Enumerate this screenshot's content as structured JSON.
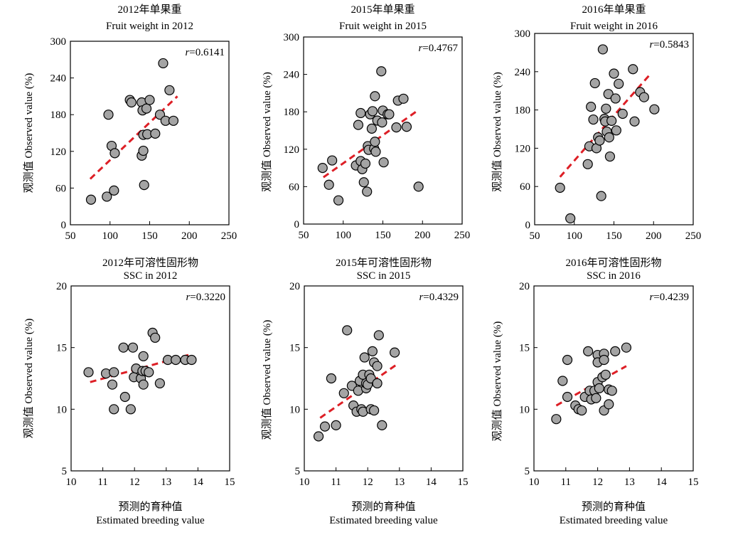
{
  "figure": {
    "ylabel": "观测值 Observed value (%)",
    "xlabel_cn": "预测的育种值",
    "xlabel_en": "Estimated breeding value"
  },
  "chart_data": [
    {
      "type": "scatter",
      "title_cn": "2012年单果重",
      "title_en": "Fruit weight in 2012",
      "r_prefix": "r",
      "r_value": "=0.6141",
      "xlim": [
        50,
        250
      ],
      "xticks": [
        50,
        100,
        150,
        200,
        250
      ],
      "ylim": [
        0,
        300
      ],
      "yticks": [
        0,
        60,
        120,
        180,
        240,
        300
      ],
      "trend": [
        [
          75,
          75
        ],
        [
          185,
          210
        ]
      ],
      "points": [
        [
          76,
          41
        ],
        [
          96,
          46
        ],
        [
          98,
          180
        ],
        [
          102,
          129
        ],
        [
          106,
          117
        ],
        [
          105,
          56
        ],
        [
          125,
          204
        ],
        [
          127,
          200
        ],
        [
          140,
          200
        ],
        [
          141,
          187
        ],
        [
          140,
          113
        ],
        [
          142,
          121
        ],
        [
          142,
          147
        ],
        [
          143,
          65
        ],
        [
          146,
          190
        ],
        [
          147,
          148
        ],
        [
          150,
          204
        ],
        [
          157,
          149
        ],
        [
          163,
          180
        ],
        [
          167,
          264
        ],
        [
          170,
          170
        ],
        [
          175,
          220
        ],
        [
          180,
          170
        ]
      ]
    },
    {
      "type": "scatter",
      "title_cn": "2015年单果重",
      "title_en": "Fruit weight in 2015",
      "r_prefix": "r",
      "r_value": "=0.4767",
      "xlim": [
        50,
        250
      ],
      "xticks": [
        50,
        100,
        150,
        200,
        250
      ],
      "ylim": [
        0,
        300
      ],
      "yticks": [
        0,
        60,
        120,
        180,
        240,
        300
      ],
      "trend": [
        [
          75,
          75
        ],
        [
          195,
          183
        ]
      ],
      "points": [
        [
          74,
          90
        ],
        [
          82,
          63
        ],
        [
          86,
          102
        ],
        [
          94,
          38
        ],
        [
          116,
          94
        ],
        [
          119,
          159
        ],
        [
          122,
          178
        ],
        [
          122,
          101
        ],
        [
          124,
          88
        ],
        [
          126,
          67
        ],
        [
          128,
          97
        ],
        [
          130,
          52
        ],
        [
          131,
          125
        ],
        [
          132,
          119
        ],
        [
          134,
          176
        ],
        [
          136,
          153
        ],
        [
          137,
          181
        ],
        [
          139,
          121
        ],
        [
          140,
          132
        ],
        [
          140,
          205
        ],
        [
          141,
          116
        ],
        [
          143,
          166
        ],
        [
          148,
          245
        ],
        [
          149,
          163
        ],
        [
          150,
          182
        ],
        [
          151,
          99
        ],
        [
          156,
          176
        ],
        [
          158,
          176
        ],
        [
          167,
          155
        ],
        [
          169,
          198
        ],
        [
          176,
          201
        ],
        [
          180,
          156
        ],
        [
          195,
          60
        ]
      ]
    },
    {
      "type": "scatter",
      "title_cn": "2016年单果重",
      "title_en": "Fruit weight in 2016",
      "r_prefix": "r",
      "r_value": "=0.5843",
      "xlim": [
        50,
        250
      ],
      "xticks": [
        50,
        100,
        150,
        200,
        250
      ],
      "ylim": [
        0,
        300
      ],
      "yticks": [
        0,
        60,
        120,
        180,
        240,
        300
      ],
      "trend": [
        [
          82,
          75
        ],
        [
          195,
          235
        ]
      ],
      "points": [
        [
          82,
          58
        ],
        [
          95,
          10
        ],
        [
          117,
          95
        ],
        [
          119,
          123
        ],
        [
          121,
          185
        ],
        [
          124,
          165
        ],
        [
          126,
          222
        ],
        [
          128,
          120
        ],
        [
          130,
          137
        ],
        [
          132,
          132
        ],
        [
          134,
          45
        ],
        [
          136,
          275
        ],
        [
          138,
          166
        ],
        [
          139,
          162
        ],
        [
          140,
          182
        ],
        [
          141,
          146
        ],
        [
          143,
          205
        ],
        [
          144,
          137
        ],
        [
          145,
          107
        ],
        [
          147,
          163
        ],
        [
          150,
          237
        ],
        [
          152,
          198
        ],
        [
          153,
          148
        ],
        [
          156,
          221
        ],
        [
          161,
          174
        ],
        [
          174,
          244
        ],
        [
          176,
          162
        ],
        [
          183,
          208
        ],
        [
          188,
          200
        ],
        [
          201,
          181
        ]
      ]
    },
    {
      "type": "scatter",
      "title_cn": "2012年可溶性固形物",
      "title_en": "SSC in 2012",
      "r_prefix": "r",
      "r_value": "=0.3220",
      "xlim": [
        10,
        15
      ],
      "xticks": [
        10,
        11,
        12,
        13,
        14,
        15
      ],
      "ylim": [
        5,
        20
      ],
      "yticks": [
        5,
        10,
        15,
        20
      ],
      "trend": [
        [
          10.6,
          12.2
        ],
        [
          13.7,
          14.4
        ]
      ],
      "points": [
        [
          10.55,
          13.0
        ],
        [
          11.1,
          12.9
        ],
        [
          11.3,
          12.0
        ],
        [
          11.35,
          13.0
        ],
        [
          11.35,
          10.0
        ],
        [
          11.65,
          15.0
        ],
        [
          11.7,
          11.0
        ],
        [
          11.88,
          10.0
        ],
        [
          11.95,
          15.0
        ],
        [
          11.98,
          12.6
        ],
        [
          12.05,
          13.3
        ],
        [
          12.2,
          12.5
        ],
        [
          12.25,
          13.1
        ],
        [
          12.28,
          12.0
        ],
        [
          12.28,
          14.3
        ],
        [
          12.35,
          13.1
        ],
        [
          12.45,
          13.0
        ],
        [
          12.57,
          16.2
        ],
        [
          12.65,
          15.8
        ],
        [
          12.8,
          12.1
        ],
        [
          13.05,
          14.0
        ],
        [
          13.3,
          14.0
        ],
        [
          13.6,
          14.0
        ],
        [
          13.8,
          14.0
        ]
      ]
    },
    {
      "type": "scatter",
      "title_cn": "2015年可溶性固形物",
      "title_en": "SSC in 2015",
      "r_prefix": "r",
      "r_value": "=0.4329",
      "xlim": [
        10,
        15
      ],
      "xticks": [
        10,
        11,
        12,
        13,
        14,
        15
      ],
      "ylim": [
        5,
        20
      ],
      "yticks": [
        5,
        10,
        15,
        20
      ],
      "trend": [
        [
          10.5,
          9.3
        ],
        [
          12.9,
          13.6
        ]
      ],
      "points": [
        [
          10.45,
          7.8
        ],
        [
          10.65,
          8.6
        ],
        [
          10.85,
          12.5
        ],
        [
          11.0,
          8.7
        ],
        [
          11.25,
          11.3
        ],
        [
          11.35,
          16.4
        ],
        [
          11.5,
          11.9
        ],
        [
          11.55,
          10.3
        ],
        [
          11.65,
          9.8
        ],
        [
          11.7,
          11.5
        ],
        [
          11.75,
          12.3
        ],
        [
          11.8,
          10.0
        ],
        [
          11.85,
          9.8
        ],
        [
          11.85,
          12.8
        ],
        [
          11.9,
          14.2
        ],
        [
          11.95,
          11.7
        ],
        [
          11.95,
          12.1
        ],
        [
          12.0,
          12.0
        ],
        [
          12.05,
          12.8
        ],
        [
          12.1,
          12.5
        ],
        [
          12.1,
          10.0
        ],
        [
          12.15,
          14.7
        ],
        [
          12.2,
          9.9
        ],
        [
          12.2,
          13.8
        ],
        [
          12.3,
          12.1
        ],
        [
          12.3,
          13.5
        ],
        [
          12.35,
          16.0
        ],
        [
          12.45,
          8.7
        ],
        [
          12.85,
          14.6
        ]
      ]
    },
    {
      "type": "scatter",
      "title_cn": "2016年可溶性固形物",
      "title_en": "SSC in 2016",
      "r_prefix": "r",
      "r_value": "=0.4239",
      "xlim": [
        10,
        15
      ],
      "xticks": [
        10,
        11,
        12,
        13,
        14,
        15
      ],
      "ylim": [
        5,
        20
      ],
      "yticks": [
        5,
        10,
        15,
        20
      ],
      "trend": [
        [
          10.7,
          10.3
        ],
        [
          12.9,
          13.5
        ]
      ],
      "points": [
        [
          10.7,
          9.2
        ],
        [
          10.9,
          12.3
        ],
        [
          11.05,
          11.0
        ],
        [
          11.05,
          14.0
        ],
        [
          11.3,
          10.3
        ],
        [
          11.4,
          10.0
        ],
        [
          11.5,
          9.9
        ],
        [
          11.6,
          11.0
        ],
        [
          11.7,
          14.7
        ],
        [
          11.75,
          11.5
        ],
        [
          11.8,
          10.8
        ],
        [
          11.9,
          11.5
        ],
        [
          11.95,
          10.9
        ],
        [
          12.0,
          14.4
        ],
        [
          12.0,
          13.8
        ],
        [
          12.0,
          12.2
        ],
        [
          12.05,
          11.7
        ],
        [
          12.15,
          12.6
        ],
        [
          12.2,
          14.5
        ],
        [
          12.2,
          14.0
        ],
        [
          12.2,
          9.9
        ],
        [
          12.25,
          12.8
        ],
        [
          12.35,
          10.4
        ],
        [
          12.35,
          11.6
        ],
        [
          12.45,
          11.5
        ],
        [
          12.55,
          14.7
        ],
        [
          12.9,
          15.0
        ]
      ]
    }
  ]
}
